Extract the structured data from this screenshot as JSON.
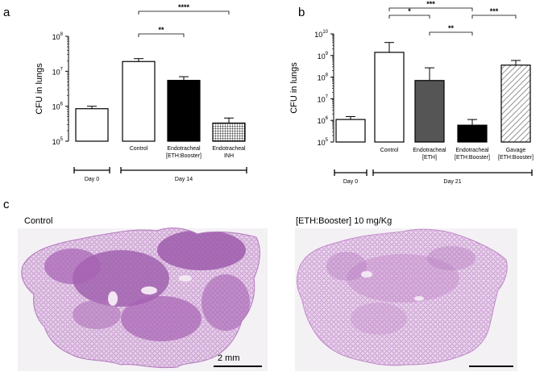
{
  "panels": {
    "a": "a",
    "b": "b",
    "c": "c"
  },
  "chart_data": [
    {
      "type": "bar",
      "panel": "a",
      "ylabel": "CFU in lungs",
      "yscale": "log",
      "ylim": [
        100000,
        100000000
      ],
      "yticks": [
        {
          "value": 100000,
          "base": "10",
          "exp": "5"
        },
        {
          "value": 1000000,
          "base": "10",
          "exp": "6"
        },
        {
          "value": 10000000,
          "base": "10",
          "exp": "7"
        },
        {
          "value": 100000000,
          "base": "10",
          "exp": "8"
        }
      ],
      "categories": [
        {
          "lines": []
        },
        {
          "lines": [
            "Control"
          ]
        },
        {
          "lines": [
            "Endotracheal",
            "[ETH:Booster]"
          ]
        },
        {
          "lines": [
            "Endotracheal",
            "INH"
          ]
        }
      ],
      "values": [
        850000,
        19000000,
        5500000,
        330000
      ],
      "errors_upper": [
        1000000,
        23000000,
        7000000,
        460000
      ],
      "fills": [
        "white",
        "white",
        "black",
        "grid"
      ],
      "groups": [
        {
          "label": "Day 0",
          "from": 0,
          "to": 0
        },
        {
          "label": "Day 14",
          "from": 1,
          "to": 3
        }
      ],
      "significance": [
        {
          "from": 1,
          "to": 2,
          "label": "**"
        },
        {
          "from": 1,
          "to": 3,
          "label": "****"
        }
      ]
    },
    {
      "type": "bar",
      "panel": "b",
      "ylabel": "CFU in lungs",
      "yscale": "log",
      "ylim": [
        100000,
        10000000000
      ],
      "yticks": [
        {
          "value": 100000,
          "base": "10",
          "exp": "5"
        },
        {
          "value": 1000000,
          "base": "10",
          "exp": "6"
        },
        {
          "value": 10000000,
          "base": "10",
          "exp": "7"
        },
        {
          "value": 100000000,
          "base": "10",
          "exp": "8"
        },
        {
          "value": 1000000000,
          "base": "10",
          "exp": "9"
        },
        {
          "value": 10000000000,
          "base": "10",
          "exp": "10"
        }
      ],
      "categories": [
        {
          "lines": []
        },
        {
          "lines": [
            "Control"
          ]
        },
        {
          "lines": [
            "Endotracheal",
            "[ETH]"
          ]
        },
        {
          "lines": [
            "Endotracheal",
            "[ETH:Booster]"
          ]
        },
        {
          "lines": [
            "Gavage",
            "[ETH:Booster]"
          ]
        }
      ],
      "values": [
        1100000,
        1400000000,
        70000000,
        600000,
        360000000
      ],
      "errors_upper": [
        1500000,
        4000000000,
        270000000,
        1100000,
        590000000
      ],
      "fills": [
        "white",
        "white",
        "#555555",
        "black",
        "hatch"
      ],
      "groups": [
        {
          "label": "Day 0",
          "from": 0,
          "to": 0
        },
        {
          "label": "Day 21",
          "from": 1,
          "to": 4
        }
      ],
      "significance": [
        {
          "from": 1,
          "to": 2,
          "label": "*"
        },
        {
          "from": 2,
          "to": 3,
          "label": "**"
        },
        {
          "from": 1,
          "to": 3,
          "label": "***"
        },
        {
          "from": 3,
          "to": 4,
          "label": "***"
        }
      ]
    }
  ],
  "histology": {
    "left_label": "Control",
    "right_label": "[ETH:Booster]  10 mg/Kg",
    "scale_bar_label": "2 mm",
    "tissue_color": "#c48ac9",
    "dense_color": "#9a55a8"
  }
}
